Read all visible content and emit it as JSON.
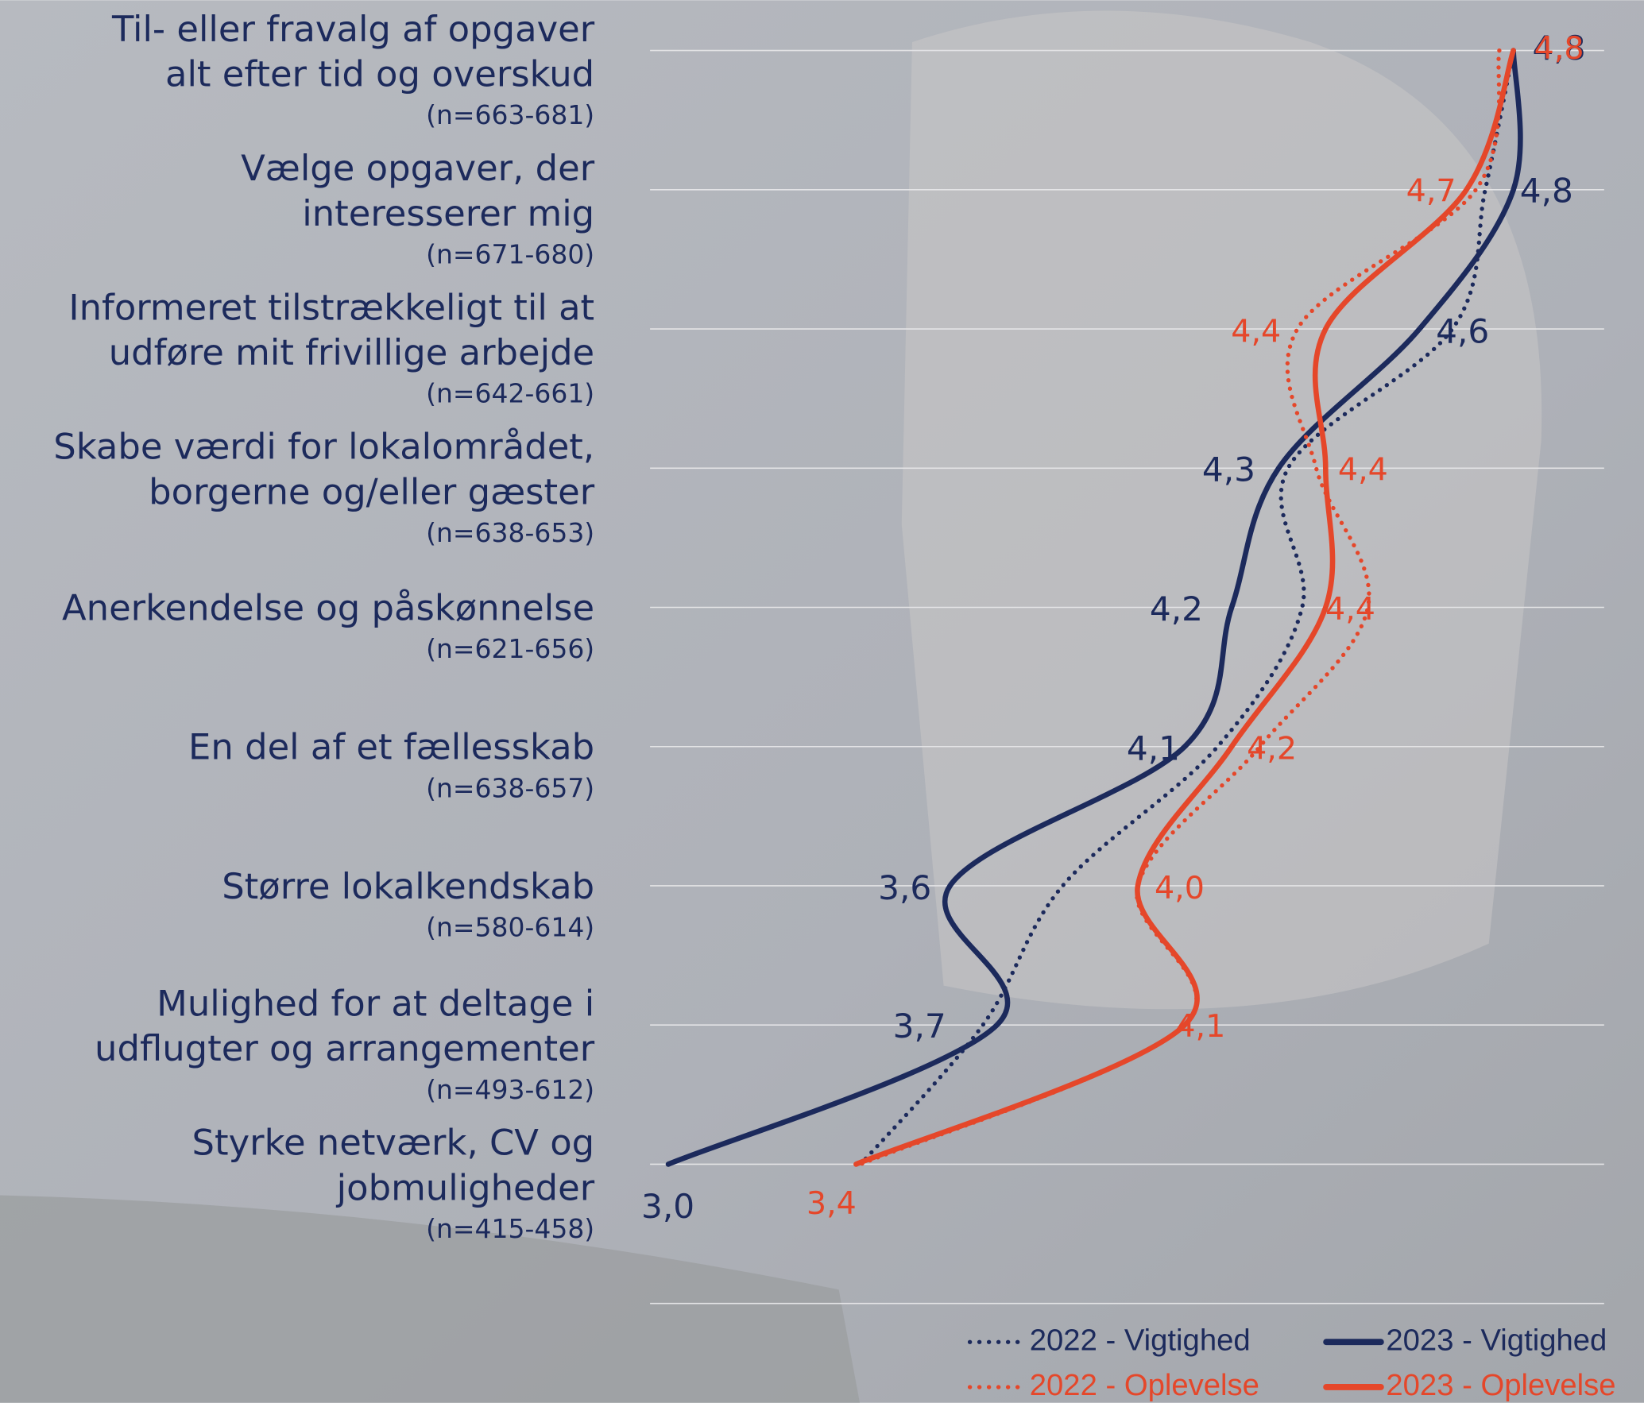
{
  "chart_data": {
    "type": "line",
    "orientation": "horizontal",
    "categories": [
      [
        "Til- eller fravalg af opgaver",
        "alt efter tid og overskud"
      ],
      [
        "Vælge opgaver, der",
        "interesserer mig"
      ],
      [
        "Informeret tilstrækkeligt til at",
        "udføre mit frivillige arbejde"
      ],
      [
        "Skabe værdi for lokalområdet,",
        "borgerne og/eller gæster"
      ],
      [
        "Anerkendelse og påskønnelse"
      ],
      [
        "En del af et fællesskab"
      ],
      [
        "Større lokalkendskab"
      ],
      [
        "Mulighed for at deltage i",
        "udflugter og arrangementer"
      ],
      [
        "Styrke netværk, CV og",
        "jobmuligheder"
      ]
    ],
    "sample_sizes": [
      "(n=663-681)",
      "(n=671-680)",
      "(n=642-661)",
      "(n=638-653)",
      "(n=621-656)",
      "(n=638-657)",
      "(n=580-614)",
      "(n=493-612)",
      "(n=415-458)"
    ],
    "xlim": [
      2.95,
      5.0
    ],
    "series": [
      {
        "name": "2022 - Vigtighed",
        "color": "#1c2a5c",
        "style": "dotted",
        "values": [
          4.8,
          4.74,
          4.67,
          4.32,
          4.35,
          4.17,
          3.84,
          3.67,
          3.41
        ]
      },
      {
        "name": "2023 - Vigtighed",
        "color": "#1c2a5c",
        "style": "solid",
        "values": [
          4.8,
          4.8,
          4.6,
          4.3,
          4.2,
          4.1,
          3.6,
          3.7,
          3.0
        ],
        "value_labels": [
          "4,8",
          "4,8",
          "4,6",
          "4,3",
          "4,2",
          "4,1",
          "3,6",
          "3,7",
          "3,0"
        ]
      },
      {
        "name": "2022 - Oplevelse",
        "color": "#e5472a",
        "style": "dotted",
        "values": [
          4.77,
          4.72,
          4.34,
          4.38,
          4.49,
          4.26,
          4.0,
          4.1,
          3.41
        ]
      },
      {
        "name": "2023 - Oplevelse",
        "color": "#e5472a",
        "style": "solid",
        "values": [
          4.8,
          4.7,
          4.4,
          4.4,
          4.4,
          4.2,
          4.0,
          4.1,
          3.4
        ],
        "value_labels": [
          "4,8",
          "4,7",
          "4,4",
          "4,4",
          "4,4",
          "4,2",
          "4,0",
          "4,1",
          "3,4"
        ]
      }
    ]
  }
}
